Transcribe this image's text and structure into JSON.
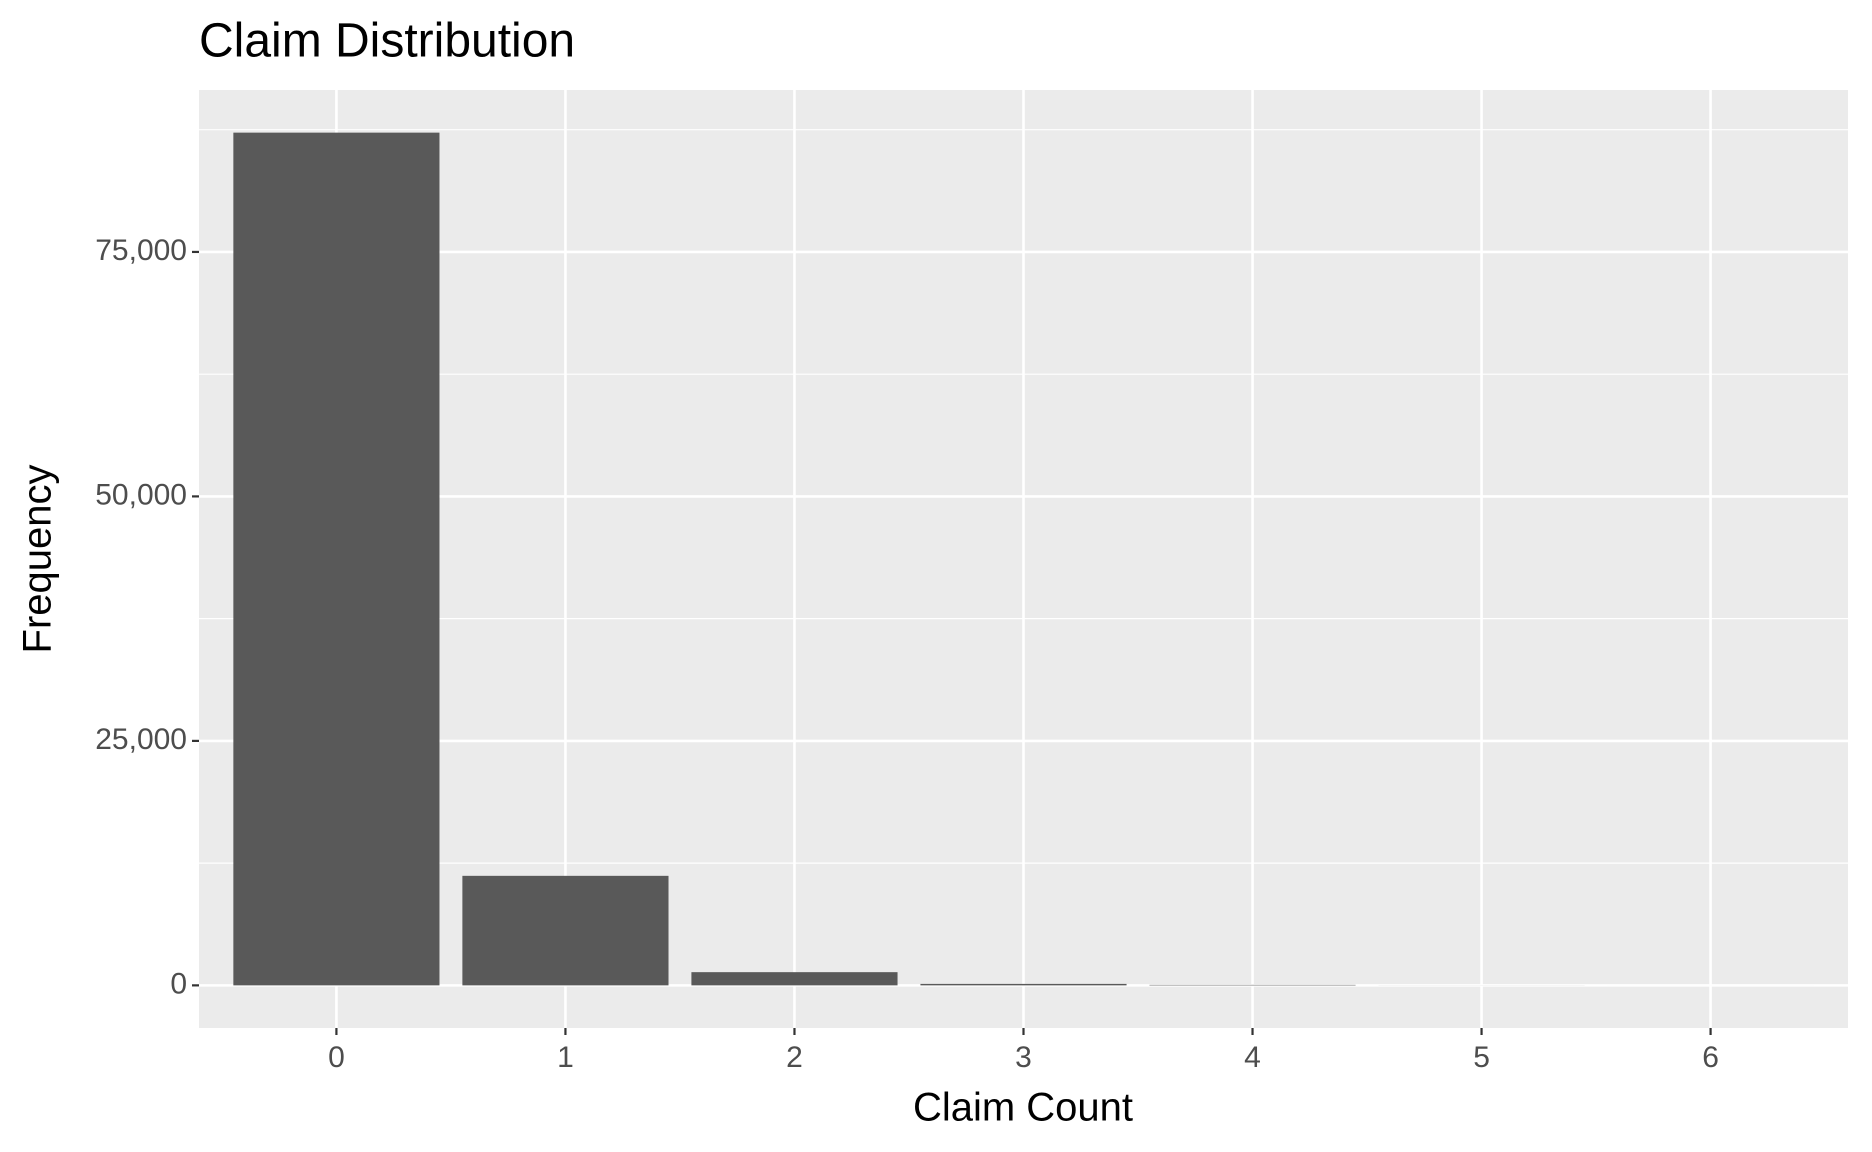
{
  "chart_data": {
    "type": "bar",
    "title": "Claim Distribution",
    "x_label": "Claim Count",
    "y_label": "Frequency",
    "x": [
      0,
      1,
      2,
      3,
      4,
      5,
      6
    ],
    "values": [
      87200,
      11200,
      1350,
      150,
      50,
      5,
      1
    ],
    "color": "#595959",
    "panel_color": "#ebebeb",
    "grid": true,
    "xlim": [
      -0.6,
      6.6
    ],
    "xticks": [
      0,
      1,
      2,
      3,
      4,
      5,
      6
    ],
    "ylim": [
      -4360,
      91560
    ],
    "yticks": [
      0,
      {
        "value": 25000,
        "label": "25,000"
      },
      {
        "value": 50000,
        "label": "50,000"
      },
      {
        "value": 75000,
        "label": "75,000"
      }
    ],
    "minor_yticks": [
      12500,
      37500,
      62500,
      87500
    ]
  }
}
